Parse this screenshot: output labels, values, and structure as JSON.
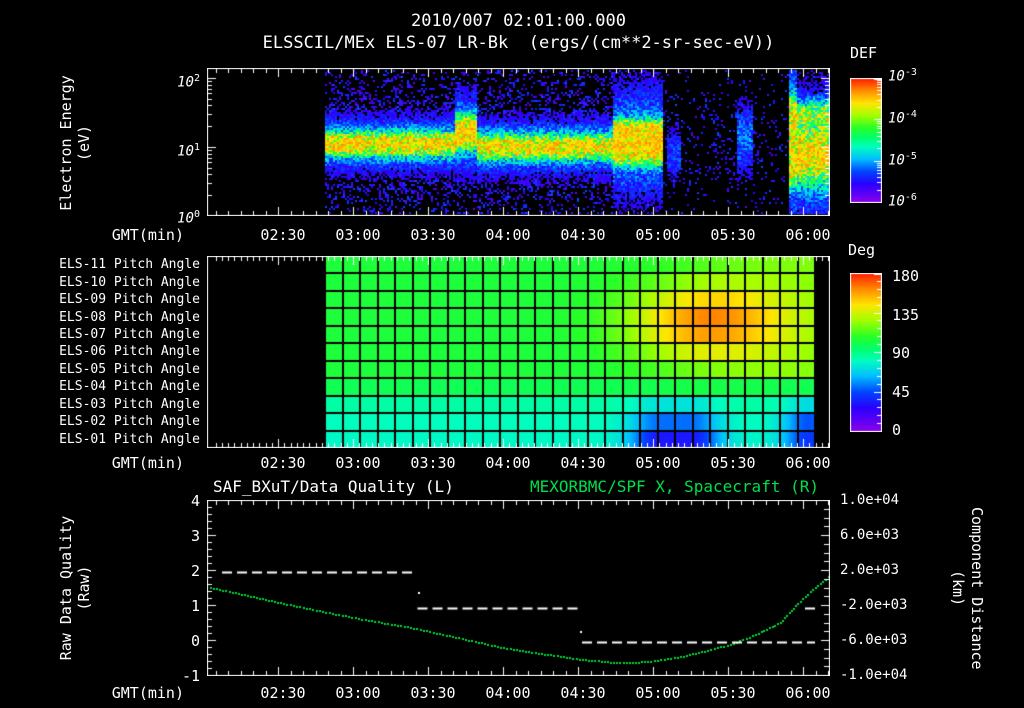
{
  "title": {
    "line1": "2010/007 02:01:00.000",
    "line2": "ELSSCIL/MEx ELS-07 LR-Bk  (ergs/(cm**2-sr-sec-eV))"
  },
  "colors": {
    "background": "#000000",
    "text": "#ffffff",
    "title_green": "#00de4a",
    "curve_green": "#00d836",
    "quality_white": "#ffffff"
  },
  "time_axis": {
    "label": "GMT(min)",
    "ticks": [
      "02:30",
      "03:00",
      "03:30",
      "04:00",
      "04:30",
      "05:00",
      "05:30",
      "06:00"
    ]
  },
  "top_panel": {
    "ylabel_line1": "Electron Energy",
    "ylabel_line2": "(eV)",
    "ytick_base": "10",
    "ytick_exps": [
      "2",
      "1",
      "0"
    ],
    "colorbar_title": "DEF",
    "colorbar_base": "10",
    "colorbar_exps": [
      "-3",
      "-4",
      "-5",
      "-6"
    ]
  },
  "middle_panel": {
    "row_labels": [
      "ELS-11 Pitch Angle",
      "ELS-10 Pitch Angle",
      "ELS-09 Pitch Angle",
      "ELS-08 Pitch Angle",
      "ELS-07 Pitch Angle",
      "ELS-06 Pitch Angle",
      "ELS-05 Pitch Angle",
      "ELS-04 Pitch Angle",
      "ELS-03 Pitch Angle",
      "ELS-02 Pitch Angle",
      "ELS-01 Pitch Angle"
    ],
    "colorbar_title": "Deg",
    "colorbar_ticks": [
      "180",
      "135",
      "90",
      "45",
      "0"
    ]
  },
  "bottom_panel": {
    "title_left": "SAF_BXuT/Data Quality (L)",
    "title_right": "MEXORBMC/SPF X, Spacecraft (R)",
    "ylabel_line1": "Raw Data Quality",
    "ylabel_line2": "(Raw)",
    "yticks_left": [
      "4",
      "3",
      "2",
      "1",
      "0",
      "-1"
    ],
    "yticks_right": [
      "1.0e+04",
      "6.0e+03",
      "2.0e+03",
      "-2.0e+03",
      "-6.0e+03",
      "-1.0e+04"
    ],
    "ylabel_right_line1": "Component Distance",
    "ylabel_right_line2": "(km)"
  },
  "chart_data": [
    {
      "type": "heatmap",
      "name": "electron-energy-spectrogram",
      "title": "ELSSCIL/MEx ELS-07 LR-Bk",
      "units": "ergs/(cm**2-sr-sec-eV)",
      "xlabel": "GMT(min)",
      "ylabel": "Electron Energy (eV)",
      "y_scale": "log",
      "y_range_ev": [
        1,
        140
      ],
      "x_range_gmt": [
        "02:01",
        "06:10"
      ],
      "color_scale": {
        "title": "DEF",
        "min_exp": -6,
        "max_exp": -3,
        "scale": "log"
      },
      "data_start_gmt": "02:47",
      "description": "No data before 02:47. Broad ~10 eV green flux band 02:47-04:10, brighter elevated blob near 03:30, intense green block 04:10-04:30, sparse purple/blue noise 04:30-05:50 with faint blue stripes near 05:25, bright cyan vertical line at 05:52 and green blob 05:55-06:10.",
      "render": {
        "data_x0": 118,
        "segments": [
          {
            "x0": 118,
            "x1": 248,
            "c": 75,
            "hw": 11,
            "amp": 0.68,
            "noise": 0.5
          },
          {
            "x0": 248,
            "x1": 270,
            "c": 64,
            "hw": 15,
            "amp": 0.74,
            "noise": 0.5
          },
          {
            "x0": 270,
            "x1": 405,
            "c": 78,
            "hw": 11,
            "amp": 0.68,
            "noise": 0.5
          },
          {
            "x0": 405,
            "x1": 456,
            "c": 73,
            "hw": 21,
            "amp": 0.74,
            "noise": 0.45,
            "p": 4
          },
          {
            "x0": 456,
            "x1": 581,
            "c": 75,
            "hw": 12,
            "amp": 0,
            "noise": 0.13
          },
          {
            "x0": 581,
            "x1": 590,
            "c": 72,
            "hw": 46,
            "amp": 0.62,
            "noise": 0.25,
            "p": 6
          },
          {
            "x0": 590,
            "x1": 623,
            "c": 86,
            "hw": 24,
            "amp": 0.72,
            "noise": 0.3,
            "upper": {
              "c": 45,
              "hw": 13,
              "amp": 0.42
            }
          }
        ],
        "stripes": [
          {
            "x0": 529,
            "x1": 546,
            "c": 70,
            "hw": 42,
            "amp": 0.26
          },
          {
            "x0": 460,
            "x1": 473,
            "c": 85,
            "hw": 30,
            "amp": 0.22
          }
        ]
      }
    },
    {
      "type": "heatmap",
      "name": "pitch-angle-grid",
      "rows": [
        "ELS-11",
        "ELS-10",
        "ELS-09",
        "ELS-08",
        "ELS-07",
        "ELS-06",
        "ELS-05",
        "ELS-04",
        "ELS-03",
        "ELS-02",
        "ELS-01"
      ],
      "color_scale": {
        "title": "Deg",
        "min": 0,
        "max": 180
      },
      "description": "Cell grid 02:47-06:04. Upper anodes ~105 deg (green), lower anodes ~80 deg (cyan). Yellow/orange maximum ~158 deg on ELS-08/ELS-07 near 04:30-05:10; blue minimum ~32 deg on ELS-01/ELS-02 near 04:20-05:20 and again at right edge.",
      "render": {
        "data_x0": 118,
        "data_x1": 608,
        "col_w": 17.5,
        "row_base_deg": [
          104,
          104,
          104,
          104,
          104,
          104,
          104,
          99,
          85,
          81,
          79
        ],
        "yellow_blob": {
          "cx": 498,
          "crow": 3.3,
          "sx": 55,
          "srow": 1.5,
          "amp": 54
        },
        "right_tint": {
          "cx": 598,
          "sx": 70,
          "amp": 16
        },
        "blue_blob": {
          "x0": 453,
          "x1": 483,
          "edge": 30,
          "amps": [
            0,
            0,
            0,
            0,
            0,
            0,
            0,
            0,
            -12,
            -30,
            -46
          ]
        },
        "right_blue": {
          "cx": 601,
          "sx": 18,
          "amps": [
            0,
            0,
            0,
            0,
            0,
            0,
            0,
            0,
            -14,
            -34,
            -38
          ]
        }
      }
    },
    {
      "type": "line",
      "name": "quality-and-distance",
      "x_range_min": [
        121.6,
        370.8
      ],
      "left_axis": {
        "label": "Raw Data Quality (Raw)",
        "range": [
          -1,
          4
        ]
      },
      "right_axis": {
        "label": "Component Distance (km)",
        "range": [
          -10000,
          10000
        ]
      },
      "series": [
        {
          "name": "MEXORBMC/SPF X, Spacecraft (R)",
          "axis": "right",
          "style": "dotted",
          "color": "#00d836",
          "points_t_km": [
            [
              122.8,
              60
            ],
            [
              137.6,
              -860
            ],
            [
              152.0,
              -1770
            ],
            [
              167.6,
              -2690
            ],
            [
              182.0,
              -3490
            ],
            [
              202.8,
              -4510
            ],
            [
              219.6,
              -5540
            ],
            [
              237.6,
              -6690
            ],
            [
              257.6,
              -7600
            ],
            [
              271.6,
              -8170
            ],
            [
              282.8,
              -8460
            ],
            [
              291.6,
              -8510
            ],
            [
              297.6,
              -8400
            ],
            [
              309.6,
              -7940
            ],
            [
              321.6,
              -7140
            ],
            [
              332.0,
              -6340
            ],
            [
              340.8,
              -5310
            ],
            [
              350.8,
              -3940
            ],
            [
              357.6,
              -1770
            ],
            [
              363.6,
              -170
            ],
            [
              367.6,
              740
            ],
            [
              370.0,
              1310
            ]
          ]
        },
        {
          "name": "SAF_BXuT/Data Quality (L)",
          "axis": "left",
          "style": "dashed",
          "color": "#ffffff",
          "quality_segments": [
            {
              "t0": 127.6,
              "t1": 205.6,
              "v": 1.95
            },
            {
              "t0": 205.8,
              "t1": 270.8,
              "v": 0.92
            },
            {
              "t0": 271.6,
              "t1": 364.8,
              "v": -0.07
            },
            {
              "t0": 360.8,
              "t1": 365.2,
              "v": 0.92
            }
          ],
          "dots_t_v": [
            [
              206.0,
              1.37
            ],
            [
              270.6,
              0.26
            ]
          ]
        }
      ]
    }
  ]
}
